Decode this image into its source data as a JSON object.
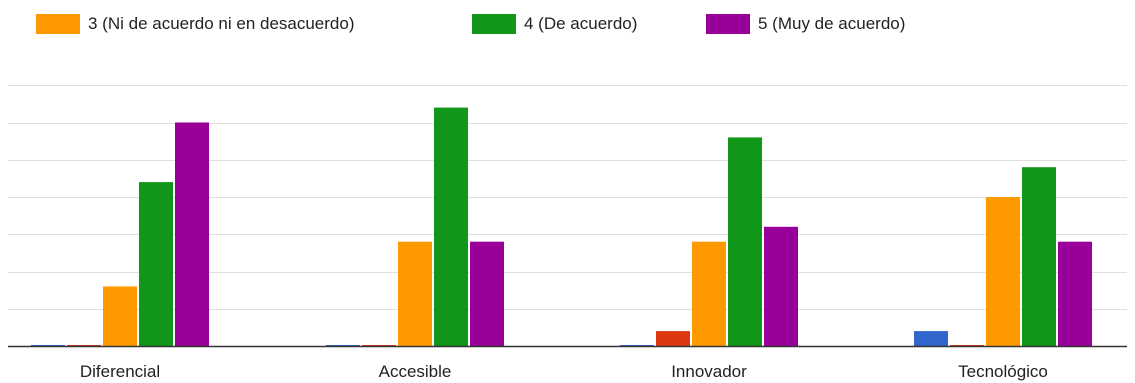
{
  "colors": {
    "series_1": "#3366cc",
    "series_2": "#dc3912",
    "series_3": "#ff9900",
    "series_4": "#109618",
    "series_5": "#990099",
    "grid": "#e0e0e0",
    "baseline": "#333333",
    "text": "#222222"
  },
  "chart_data": {
    "type": "bar",
    "categories": [
      "Diferencial",
      "Accesible",
      "Innovador",
      "Tecnológico"
    ],
    "ylim": [
      0,
      8
    ],
    "grid": true,
    "legend_placement": "top-left",
    "series": [
      {
        "name": "",
        "color_key": "series_1",
        "values": [
          0,
          0,
          0,
          0.4
        ]
      },
      {
        "name": "",
        "color_key": "series_2",
        "values": [
          0,
          0,
          0.4,
          0
        ]
      },
      {
        "name": "3 (Ni de acuerdo ni en desacuerdo)",
        "color_key": "series_3",
        "values": [
          1.6,
          2.8,
          2.8,
          4.0
        ]
      },
      {
        "name": "4 (De acuerdo)",
        "color_key": "series_4",
        "values": [
          4.4,
          6.4,
          5.6,
          4.8
        ]
      },
      {
        "name": "5 (Muy de acuerdo)",
        "color_key": "series_5",
        "values": [
          6.0,
          2.8,
          3.2,
          2.8
        ]
      }
    ]
  }
}
